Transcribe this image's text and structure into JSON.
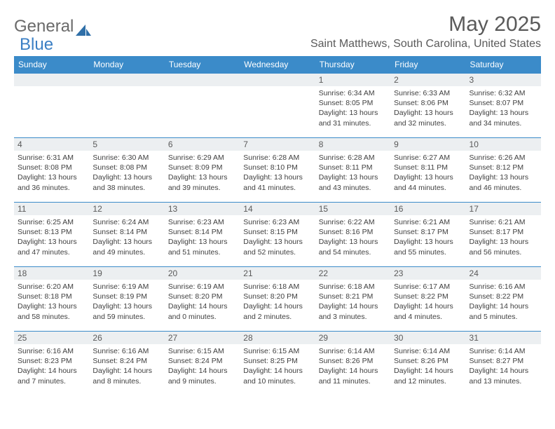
{
  "logo": {
    "text1": "General",
    "text2": "Blue"
  },
  "title": "May 2025",
  "location": "Saint Matthews, South Carolina, United States",
  "colors": {
    "header_bg": "#3b8bc9",
    "header_text": "#ffffff",
    "daynum_bg": "#eceff1",
    "border": "#3b8bc9",
    "logo_gray": "#6a6a6a",
    "logo_blue": "#3b7fc4"
  },
  "weekdays": [
    "Sunday",
    "Monday",
    "Tuesday",
    "Wednesday",
    "Thursday",
    "Friday",
    "Saturday"
  ],
  "weeks": [
    [
      {
        "n": "",
        "sunrise": "",
        "sunset": "",
        "daylight": ""
      },
      {
        "n": "",
        "sunrise": "",
        "sunset": "",
        "daylight": ""
      },
      {
        "n": "",
        "sunrise": "",
        "sunset": "",
        "daylight": ""
      },
      {
        "n": "",
        "sunrise": "",
        "sunset": "",
        "daylight": ""
      },
      {
        "n": "1",
        "sunrise": "Sunrise: 6:34 AM",
        "sunset": "Sunset: 8:05 PM",
        "daylight": "Daylight: 13 hours and 31 minutes."
      },
      {
        "n": "2",
        "sunrise": "Sunrise: 6:33 AM",
        "sunset": "Sunset: 8:06 PM",
        "daylight": "Daylight: 13 hours and 32 minutes."
      },
      {
        "n": "3",
        "sunrise": "Sunrise: 6:32 AM",
        "sunset": "Sunset: 8:07 PM",
        "daylight": "Daylight: 13 hours and 34 minutes."
      }
    ],
    [
      {
        "n": "4",
        "sunrise": "Sunrise: 6:31 AM",
        "sunset": "Sunset: 8:08 PM",
        "daylight": "Daylight: 13 hours and 36 minutes."
      },
      {
        "n": "5",
        "sunrise": "Sunrise: 6:30 AM",
        "sunset": "Sunset: 8:08 PM",
        "daylight": "Daylight: 13 hours and 38 minutes."
      },
      {
        "n": "6",
        "sunrise": "Sunrise: 6:29 AM",
        "sunset": "Sunset: 8:09 PM",
        "daylight": "Daylight: 13 hours and 39 minutes."
      },
      {
        "n": "7",
        "sunrise": "Sunrise: 6:28 AM",
        "sunset": "Sunset: 8:10 PM",
        "daylight": "Daylight: 13 hours and 41 minutes."
      },
      {
        "n": "8",
        "sunrise": "Sunrise: 6:28 AM",
        "sunset": "Sunset: 8:11 PM",
        "daylight": "Daylight: 13 hours and 43 minutes."
      },
      {
        "n": "9",
        "sunrise": "Sunrise: 6:27 AM",
        "sunset": "Sunset: 8:11 PM",
        "daylight": "Daylight: 13 hours and 44 minutes."
      },
      {
        "n": "10",
        "sunrise": "Sunrise: 6:26 AM",
        "sunset": "Sunset: 8:12 PM",
        "daylight": "Daylight: 13 hours and 46 minutes."
      }
    ],
    [
      {
        "n": "11",
        "sunrise": "Sunrise: 6:25 AM",
        "sunset": "Sunset: 8:13 PM",
        "daylight": "Daylight: 13 hours and 47 minutes."
      },
      {
        "n": "12",
        "sunrise": "Sunrise: 6:24 AM",
        "sunset": "Sunset: 8:14 PM",
        "daylight": "Daylight: 13 hours and 49 minutes."
      },
      {
        "n": "13",
        "sunrise": "Sunrise: 6:23 AM",
        "sunset": "Sunset: 8:14 PM",
        "daylight": "Daylight: 13 hours and 51 minutes."
      },
      {
        "n": "14",
        "sunrise": "Sunrise: 6:23 AM",
        "sunset": "Sunset: 8:15 PM",
        "daylight": "Daylight: 13 hours and 52 minutes."
      },
      {
        "n": "15",
        "sunrise": "Sunrise: 6:22 AM",
        "sunset": "Sunset: 8:16 PM",
        "daylight": "Daylight: 13 hours and 54 minutes."
      },
      {
        "n": "16",
        "sunrise": "Sunrise: 6:21 AM",
        "sunset": "Sunset: 8:17 PM",
        "daylight": "Daylight: 13 hours and 55 minutes."
      },
      {
        "n": "17",
        "sunrise": "Sunrise: 6:21 AM",
        "sunset": "Sunset: 8:17 PM",
        "daylight": "Daylight: 13 hours and 56 minutes."
      }
    ],
    [
      {
        "n": "18",
        "sunrise": "Sunrise: 6:20 AM",
        "sunset": "Sunset: 8:18 PM",
        "daylight": "Daylight: 13 hours and 58 minutes."
      },
      {
        "n": "19",
        "sunrise": "Sunrise: 6:19 AM",
        "sunset": "Sunset: 8:19 PM",
        "daylight": "Daylight: 13 hours and 59 minutes."
      },
      {
        "n": "20",
        "sunrise": "Sunrise: 6:19 AM",
        "sunset": "Sunset: 8:20 PM",
        "daylight": "Daylight: 14 hours and 0 minutes."
      },
      {
        "n": "21",
        "sunrise": "Sunrise: 6:18 AM",
        "sunset": "Sunset: 8:20 PM",
        "daylight": "Daylight: 14 hours and 2 minutes."
      },
      {
        "n": "22",
        "sunrise": "Sunrise: 6:18 AM",
        "sunset": "Sunset: 8:21 PM",
        "daylight": "Daylight: 14 hours and 3 minutes."
      },
      {
        "n": "23",
        "sunrise": "Sunrise: 6:17 AM",
        "sunset": "Sunset: 8:22 PM",
        "daylight": "Daylight: 14 hours and 4 minutes."
      },
      {
        "n": "24",
        "sunrise": "Sunrise: 6:16 AM",
        "sunset": "Sunset: 8:22 PM",
        "daylight": "Daylight: 14 hours and 5 minutes."
      }
    ],
    [
      {
        "n": "25",
        "sunrise": "Sunrise: 6:16 AM",
        "sunset": "Sunset: 8:23 PM",
        "daylight": "Daylight: 14 hours and 7 minutes."
      },
      {
        "n": "26",
        "sunrise": "Sunrise: 6:16 AM",
        "sunset": "Sunset: 8:24 PM",
        "daylight": "Daylight: 14 hours and 8 minutes."
      },
      {
        "n": "27",
        "sunrise": "Sunrise: 6:15 AM",
        "sunset": "Sunset: 8:24 PM",
        "daylight": "Daylight: 14 hours and 9 minutes."
      },
      {
        "n": "28",
        "sunrise": "Sunrise: 6:15 AM",
        "sunset": "Sunset: 8:25 PM",
        "daylight": "Daylight: 14 hours and 10 minutes."
      },
      {
        "n": "29",
        "sunrise": "Sunrise: 6:14 AM",
        "sunset": "Sunset: 8:26 PM",
        "daylight": "Daylight: 14 hours and 11 minutes."
      },
      {
        "n": "30",
        "sunrise": "Sunrise: 6:14 AM",
        "sunset": "Sunset: 8:26 PM",
        "daylight": "Daylight: 14 hours and 12 minutes."
      },
      {
        "n": "31",
        "sunrise": "Sunrise: 6:14 AM",
        "sunset": "Sunset: 8:27 PM",
        "daylight": "Daylight: 14 hours and 13 minutes."
      }
    ]
  ]
}
